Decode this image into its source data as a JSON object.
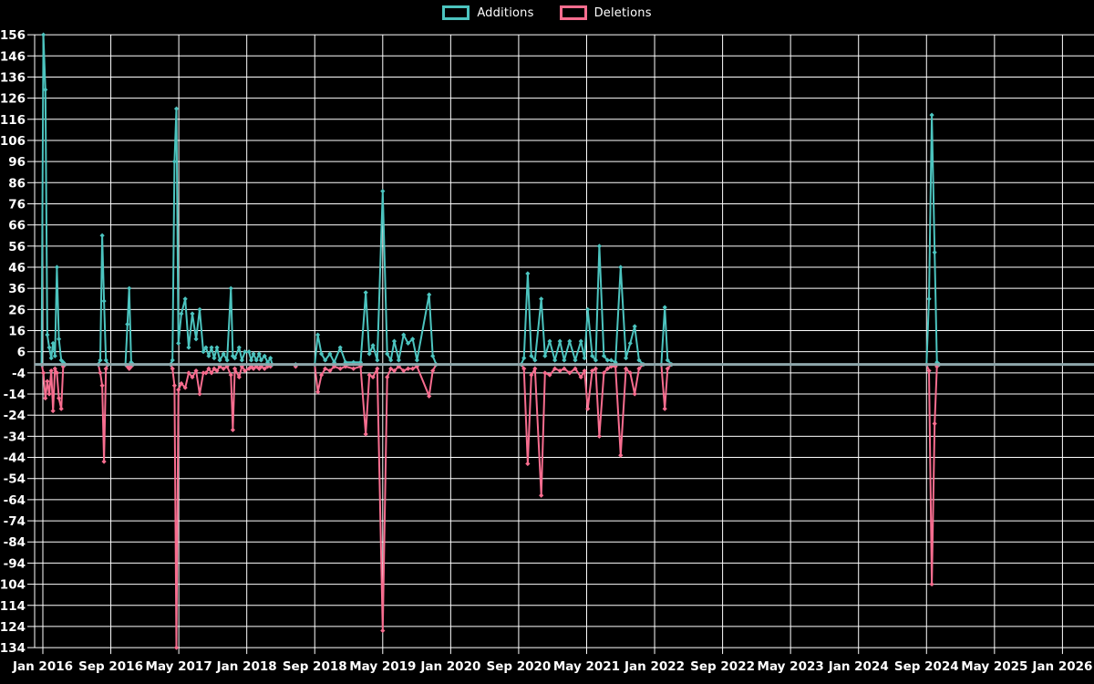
{
  "chart_data": {
    "type": "line",
    "title": "",
    "description": "Weekly additions and deletions history (code frequency style chart) on black background",
    "legend": {
      "position": "top",
      "items": [
        {
          "label": "Additions",
          "color": "#4cc4bf"
        },
        {
          "label": "Deletions",
          "color": "#f76d8f"
        }
      ]
    },
    "colors": {
      "background": "#000000",
      "grid": "#ffffff",
      "text": "#ffffff",
      "zero_line": "#8ea7ab",
      "additions": "#4cc4bf",
      "deletions": "#f76d8f"
    },
    "x_axis": {
      "tick_labels": [
        "Jan 2016",
        "Sep 2016",
        "May 2017",
        "Jan 2018",
        "Sep 2018",
        "May 2019",
        "Jan 2020",
        "Sep 2020",
        "May 2021",
        "Jan 2022",
        "Sep 2022",
        "May 2023",
        "Jan 2024",
        "Sep 2024",
        "May 2025",
        "Jan 2026"
      ],
      "months_between_ticks": 8,
      "start": "2016-01"
    },
    "y_axis": {
      "min": -134,
      "max": 156,
      "step": 10,
      "tick_labels": [
        156,
        146,
        136,
        126,
        116,
        106,
        96,
        86,
        76,
        66,
        56,
        46,
        36,
        26,
        16,
        6,
        -4,
        -14,
        -24,
        -34,
        -44,
        -54,
        -64,
        -74,
        -84,
        -94,
        -104,
        -114,
        -124,
        -134
      ]
    },
    "series_names": [
      "Additions",
      "Deletions"
    ],
    "point_style": "diamond",
    "segments": [
      {
        "points": [
          [
            "2015-12-27",
            0,
            0
          ],
          [
            "2016-01-03",
            156,
            -4
          ],
          [
            "2016-01-10",
            130,
            -16
          ],
          [
            "2016-01-17",
            14,
            -8
          ],
          [
            "2016-01-24",
            8,
            -14
          ],
          [
            "2016-01-31",
            3,
            -3
          ],
          [
            "2016-02-07",
            10,
            -22
          ],
          [
            "2016-02-14",
            4,
            -2
          ],
          [
            "2016-02-21",
            46,
            -4
          ],
          [
            "2016-02-28",
            12,
            -16
          ],
          [
            "2016-03-06",
            2,
            -21
          ],
          [
            "2016-03-13",
            1,
            -1
          ],
          [
            "2016-03-20",
            0,
            0
          ]
        ]
      },
      {
        "points": [
          [
            "2016-07-17",
            0,
            0
          ],
          [
            "2016-07-24",
            2,
            -4
          ],
          [
            "2016-07-31",
            61,
            -10
          ],
          [
            "2016-08-07",
            30,
            -46
          ],
          [
            "2016-08-14",
            2,
            -2
          ],
          [
            "2016-08-21",
            0,
            0
          ]
        ]
      },
      {
        "points": [
          [
            "2016-10-23",
            0,
            0
          ],
          [
            "2016-10-30",
            19,
            -1
          ],
          [
            "2016-11-06",
            36,
            -2
          ],
          [
            "2016-11-13",
            1,
            -1
          ],
          [
            "2016-11-20",
            0,
            0
          ]
        ]
      },
      {
        "points": [
          [
            "2017-04-02",
            0,
            0
          ],
          [
            "2017-04-09",
            2,
            -2
          ],
          [
            "2017-04-16",
            96,
            -10
          ],
          [
            "2017-04-23",
            121,
            -134
          ],
          [
            "2017-04-30",
            10,
            -12
          ],
          [
            "2017-05-10",
            24,
            -9
          ],
          [
            "2017-05-24",
            31,
            -11
          ],
          [
            "2017-06-06",
            8,
            -4
          ],
          [
            "2017-06-19",
            24,
            -6
          ],
          [
            "2017-07-02",
            12,
            -3
          ],
          [
            "2017-07-15",
            26,
            -14
          ],
          [
            "2017-07-28",
            6,
            -4
          ],
          [
            "2017-08-07",
            8,
            -4
          ],
          [
            "2017-08-17",
            4,
            -2
          ],
          [
            "2017-08-27",
            8,
            -4
          ],
          [
            "2017-09-06",
            3,
            -2
          ],
          [
            "2017-09-16",
            8,
            -3
          ],
          [
            "2017-09-26",
            2,
            -1
          ],
          [
            "2017-10-09",
            5,
            -2
          ],
          [
            "2017-10-22",
            2,
            -1
          ],
          [
            "2017-11-05",
            36,
            -5
          ],
          [
            "2017-11-12",
            4,
            -31
          ],
          [
            "2017-11-19",
            3,
            -2
          ],
          [
            "2017-12-04",
            8,
            -6
          ],
          [
            "2017-12-14",
            2,
            -1
          ],
          [
            "2017-12-25",
            6,
            -3
          ],
          [
            "2018-01-09",
            6,
            -2
          ],
          [
            "2018-01-17",
            2,
            -1
          ],
          [
            "2018-01-25",
            5,
            -2
          ],
          [
            "2018-02-05",
            2,
            -1
          ],
          [
            "2018-02-15",
            5,
            -2
          ],
          [
            "2018-02-22",
            2,
            -1
          ],
          [
            "2018-03-04",
            4,
            -2
          ],
          [
            "2018-03-15",
            1,
            -1
          ],
          [
            "2018-03-25",
            3,
            -1
          ],
          [
            "2018-04-01",
            0,
            0
          ]
        ]
      },
      {
        "points": [
          [
            "2018-06-24",
            0,
            -1
          ]
        ]
      },
      {
        "points": [
          [
            "2018-09-01",
            0,
            0
          ],
          [
            "2018-09-12",
            14,
            -13
          ],
          [
            "2018-09-25",
            5,
            -5
          ],
          [
            "2018-10-08",
            2,
            -2
          ],
          [
            "2018-10-25",
            5,
            -3
          ],
          [
            "2018-11-10",
            1,
            -1
          ],
          [
            "2018-12-01",
            8,
            -2
          ],
          [
            "2018-12-20",
            1,
            -1
          ],
          [
            "2019-01-18",
            1,
            -2
          ],
          [
            "2019-02-13",
            1,
            -1
          ],
          [
            "2019-03-01",
            34,
            -33
          ],
          [
            "2019-03-14",
            5,
            -5
          ],
          [
            "2019-03-27",
            9,
            -6
          ],
          [
            "2019-04-12",
            2,
            -2
          ],
          [
            "2019-05-01",
            82,
            -126
          ],
          [
            "2019-05-17",
            5,
            -6
          ],
          [
            "2019-05-30",
            2,
            -2
          ],
          [
            "2019-06-12",
            11,
            -3
          ],
          [
            "2019-06-28",
            2,
            -1
          ],
          [
            "2019-07-15",
            14,
            -3
          ],
          [
            "2019-07-31",
            10,
            -2
          ],
          [
            "2019-08-17",
            12,
            -2
          ],
          [
            "2019-09-02",
            2,
            -1
          ],
          [
            "2019-10-15",
            33,
            -15
          ],
          [
            "2019-10-28",
            4,
            -3
          ],
          [
            "2019-11-10",
            0,
            0
          ]
        ]
      },
      {
        "points": [
          [
            "2020-09-10",
            0,
            0
          ],
          [
            "2020-09-20",
            3,
            -2
          ],
          [
            "2020-10-03",
            43,
            -47
          ],
          [
            "2020-10-16",
            4,
            -5
          ],
          [
            "2020-10-29",
            2,
            -2
          ],
          [
            "2020-11-21",
            31,
            -62
          ],
          [
            "2020-12-04",
            4,
            -4
          ],
          [
            "2020-12-21",
            11,
            -5
          ],
          [
            "2021-01-09",
            2,
            -2
          ],
          [
            "2021-01-27",
            11,
            -3
          ],
          [
            "2021-02-12",
            2,
            -2
          ],
          [
            "2021-03-01",
            11,
            -4
          ],
          [
            "2021-03-21",
            2,
            -2
          ],
          [
            "2021-04-11",
            11,
            -6
          ],
          [
            "2021-04-24",
            3,
            -3
          ],
          [
            "2021-05-05",
            26,
            -21
          ],
          [
            "2021-05-21",
            4,
            -3
          ],
          [
            "2021-06-03",
            2,
            -2
          ],
          [
            "2021-06-16",
            56,
            -34
          ],
          [
            "2021-07-02",
            4,
            -4
          ],
          [
            "2021-07-15",
            2,
            -2
          ],
          [
            "2021-07-28",
            2,
            -1
          ],
          [
            "2021-08-13",
            1,
            -1
          ],
          [
            "2021-09-01",
            46,
            -43
          ],
          [
            "2021-09-20",
            3,
            -2
          ],
          [
            "2021-10-05",
            10,
            -4
          ],
          [
            "2021-10-21",
            18,
            -14
          ],
          [
            "2021-11-06",
            2,
            -2
          ],
          [
            "2021-11-22",
            0,
            0
          ],
          [
            "2022-01-25",
            0,
            0
          ],
          [
            "2022-02-07",
            27,
            -21
          ],
          [
            "2022-02-17",
            2,
            -2
          ],
          [
            "2022-03-01",
            0,
            0
          ]
        ]
      },
      {
        "points": [
          [
            "2024-09-01",
            0,
            0
          ],
          [
            "2024-09-10",
            31,
            -3
          ],
          [
            "2024-09-20",
            118,
            -104
          ],
          [
            "2024-09-30",
            53,
            -28
          ],
          [
            "2024-10-08",
            1,
            -1
          ],
          [
            "2024-10-16",
            0,
            0
          ]
        ]
      }
    ]
  }
}
